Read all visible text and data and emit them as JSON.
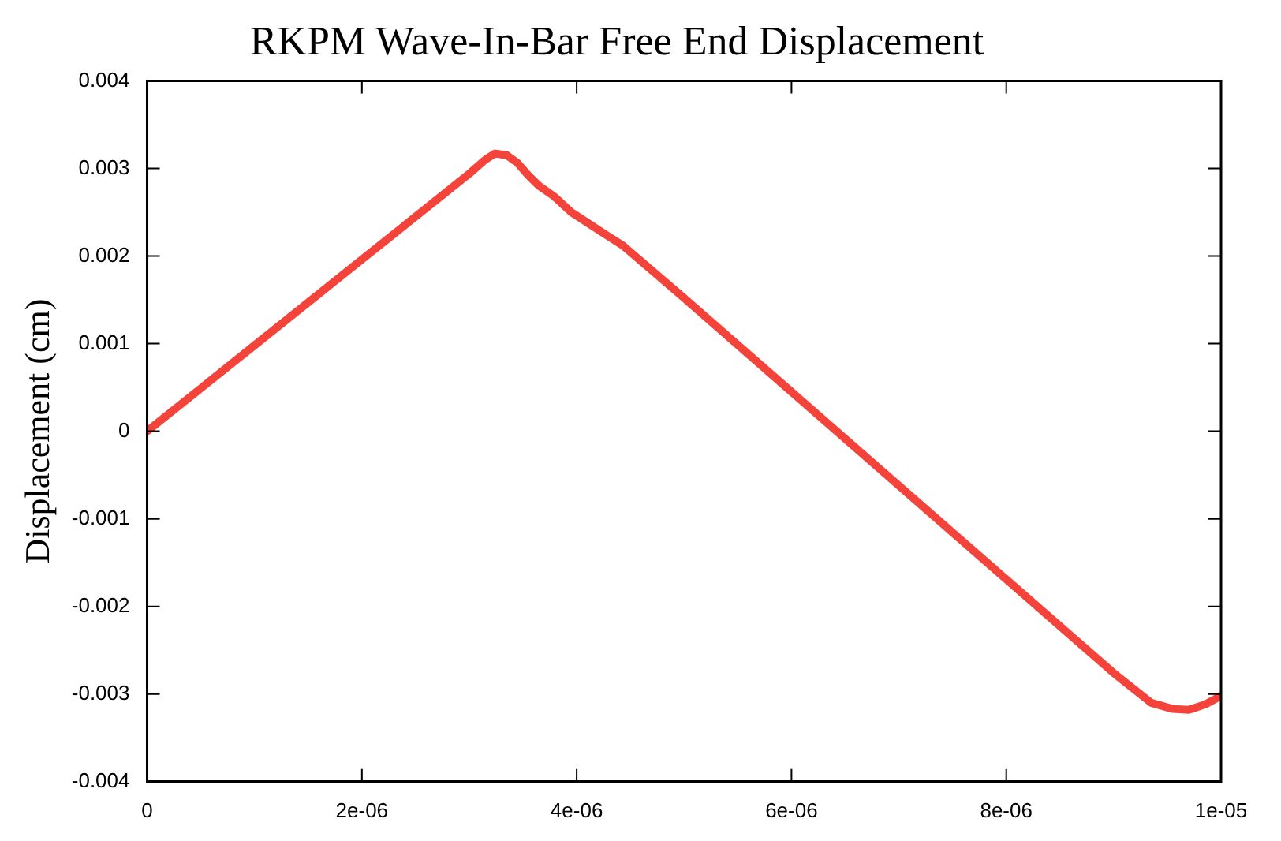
{
  "chart_data": {
    "type": "line",
    "title": "RKPM Wave-In-Bar Free End Displacement",
    "ylabel": "Displacement (cm)",
    "x": [
      0,
      1e-06,
      2e-06,
      3e-06,
      3.15e-06,
      3.24e-06,
      3.35e-06,
      3.45e-06,
      3.55e-06,
      3.65e-06,
      3.79e-06,
      3.95e-06,
      4.1e-06,
      4.25e-06,
      4.43e-06,
      5e-06,
      6e-06,
      7e-06,
      8e-06,
      9e-06,
      9.35e-06,
      9.55e-06,
      9.7e-06,
      9.85e-06,
      1e-05
    ],
    "series": [
      {
        "color": "#f4433a",
        "values": [
          0,
          0.00098,
          0.00196,
          0.00294,
          0.0031,
          0.00317,
          0.00315,
          0.00306,
          0.00292,
          0.0028,
          0.00268,
          0.0025,
          0.00238,
          0.00226,
          0.00212,
          0.00152,
          0.00045,
          -0.00062,
          -0.00169,
          -0.00276,
          -0.0031,
          -0.00317,
          -0.00318,
          -0.00312,
          -0.00302
        ]
      }
    ],
    "xlim": [
      0,
      1e-05
    ],
    "xticks": [
      0,
      {
        "value": 2e-06,
        "label": "2e-06"
      },
      {
        "value": 4e-06,
        "label": "4e-06"
      },
      {
        "value": 6e-06,
        "label": "6e-06"
      },
      {
        "value": 8e-06,
        "label": "8e-06"
      },
      {
        "value": 1e-05,
        "label": "1e-05"
      }
    ],
    "ylim": [
      -0.004,
      0.004
    ],
    "yticks": [
      -0.004,
      -0.003,
      -0.002,
      -0.001,
      0,
      0.001,
      0.002,
      0.003,
      0.004
    ],
    "grid": false,
    "legend": false,
    "marker": "none",
    "line_style": "solid"
  }
}
